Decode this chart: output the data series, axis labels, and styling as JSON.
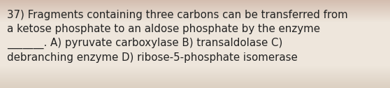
{
  "text": "37) Fragments containing three carbons can be transferred from\na ketose phosphate to an aldose phosphate by the enzyme\n_______. A) pyruvate carboxylase B) transaldolase C)\ndebranching enzyme D) ribose-5-phosphate isomerase",
  "bg_color": "#ede0d4",
  "bg_top": "#d9c4b5",
  "bg_mid": "#ede5db",
  "bg_bot": "#ddd0c4",
  "text_color": "#222222",
  "font_size": 10.8,
  "fig_width": 5.58,
  "fig_height": 1.26
}
